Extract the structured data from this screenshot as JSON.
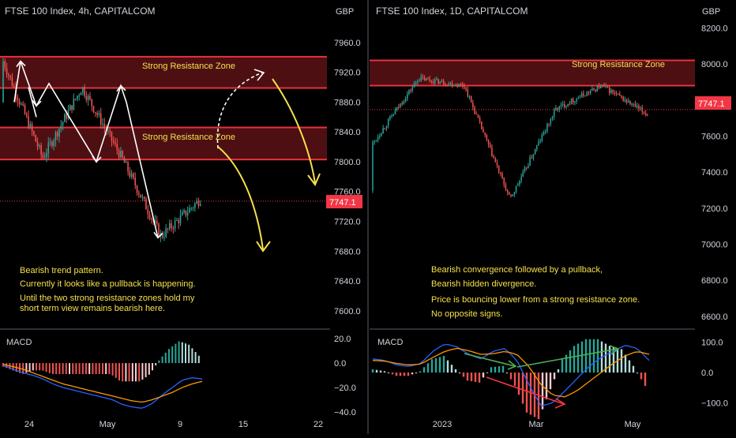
{
  "colors": {
    "background": "#000000",
    "bull": "#26a69a",
    "bear": "#ef5350",
    "zone_fill": "#5c1216",
    "zone_line": "#e8323c",
    "annotation_text": "#f5e04a",
    "axis_text": "#d1d4dc",
    "price_tag": "#f23645",
    "macd_line": "#2962ff",
    "signal_line": "#ff9800",
    "trend_arrow": "#ffffff",
    "projection_arrow": "#f5e04a",
    "divergence_green": "#4caf50",
    "divergence_red": "#f23645"
  },
  "panels": [
    {
      "id": "left",
      "title": "FTSE 100 Index, 4h, CAPITALCOM",
      "currency": "GBP",
      "price_ticks": [
        "7960.0",
        "7920.0",
        "7880.0",
        "7840.0",
        "7800.0",
        "7760.0",
        "7720.0",
        "7680.0",
        "7640.0",
        "7600.0"
      ],
      "price_tag": "7747.1",
      "zone_labels": [
        "Strong Resistance Zone",
        "Strong Resistance Zone"
      ],
      "notes": [
        "Bearish trend pattern.",
        "Currently it looks like a pullback is happening.",
        "Until the two strong resistance zones hold my",
        "short term view remains bearish here."
      ],
      "macd_label": "MACD",
      "macd_ticks": [
        "20.0",
        "0.0",
        "−20.0",
        "−40.0"
      ],
      "time_ticks": [
        "24",
        "May",
        "9",
        "15",
        "22"
      ]
    },
    {
      "id": "right",
      "title": "FTSE 100 Index, 1D, CAPITALCOM",
      "currency": "GBP",
      "price_ticks": [
        "8200.0",
        "8000.0",
        "7800.0",
        "7600.0",
        "7400.0",
        "7200.0",
        "7000.0",
        "6800.0",
        "6600.0"
      ],
      "price_tag": "7747.1",
      "zone_labels": [
        "Strong Resistance Zone"
      ],
      "notes": [
        "Bearish convergence followed by a pullback,",
        "Bearish hidden divergence.",
        "Price is bouncing lower from a strong resistance zone.",
        "No opposite signs."
      ],
      "macd_label": "MACD",
      "macd_ticks": [
        "100.0",
        "0.0",
        "−100.0"
      ],
      "time_ticks": [
        "2023",
        "Mar",
        "May"
      ]
    }
  ],
  "chart_data": [
    {
      "type": "candlestick",
      "title": "FTSE 100 Index, 4h, CAPITALCOM",
      "ylabel": "GBP",
      "ylim": [
        7585,
        7980
      ],
      "last_price": 7747.1,
      "resistance_zones": [
        [
          7899,
          7941
        ],
        [
          7803,
          7846
        ]
      ],
      "path_points": [
        [
          7880,
          7935
        ],
        [
          7898,
          7805
        ],
        [
          7770,
          7900
        ],
        [
          7698,
          7806
        ],
        [
          7780,
          7700
        ],
        [
          7760,
          7750
        ]
      ],
      "macd_ylim": [
        -40,
        22
      ],
      "macd": [
        -2,
        -5,
        -8,
        -10,
        -13,
        -17,
        -20,
        -22,
        -24,
        -26,
        -28,
        -30,
        -34,
        -36,
        -37,
        -33,
        -26,
        -20,
        -14,
        -12,
        -13
      ],
      "signal": [
        -1,
        -3,
        -5,
        -8,
        -11,
        -14,
        -17,
        -19,
        -21,
        -23,
        -25,
        -27,
        -29,
        -31,
        -32,
        -30,
        -27,
        -24,
        -20,
        -17,
        -15
      ]
    },
    {
      "type": "candlestick",
      "title": "FTSE 100 Index, 1D, CAPITALCOM",
      "ylabel": "GBP",
      "ylim": [
        6560,
        8250
      ],
      "last_price": 7747.1,
      "resistance_zones": [
        [
          7880,
          8020
        ]
      ],
      "path_points": [
        [
          7300,
          7560
        ],
        [
          7900,
          7920
        ],
        [
          8030,
          7880
        ],
        [
          7650,
          7250
        ],
        [
          7600,
          7750
        ],
        [
          7900,
          7880
        ],
        [
          7800,
          7720
        ]
      ],
      "macd_ylim": [
        -130,
        120
      ],
      "macd": [
        45,
        40,
        25,
        20,
        30,
        70,
        95,
        85,
        60,
        45,
        70,
        80,
        40,
        -40,
        -110,
        -100,
        -60,
        -20,
        20,
        50,
        70,
        90,
        80,
        40
      ],
      "signal": [
        40,
        38,
        30,
        25,
        28,
        50,
        70,
        80,
        72,
        60,
        62,
        70,
        60,
        20,
        -40,
        -75,
        -80,
        -60,
        -30,
        0,
        30,
        55,
        70,
        60
      ]
    }
  ]
}
